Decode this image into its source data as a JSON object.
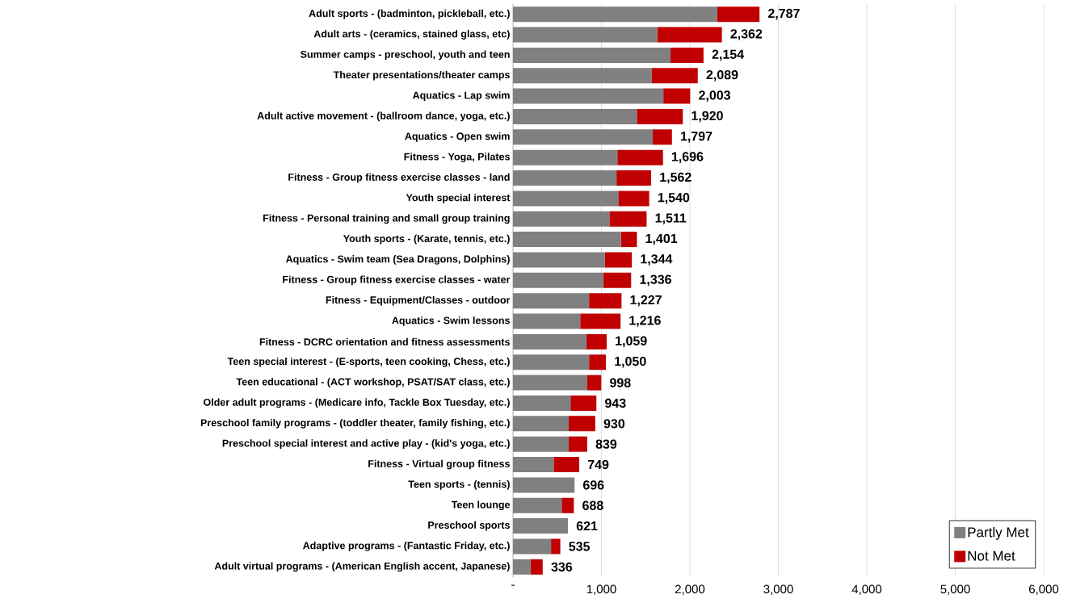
{
  "chart_data": {
    "type": "bar",
    "orientation": "horizontal",
    "stacked": true,
    "categories": [
      "Adult sports - (badminton, pickleball, etc.)",
      "Adult arts - (ceramics, stained glass, etc)",
      "Summer camps - preschool, youth and teen",
      "Theater presentations/theater camps",
      "Aquatics - Lap swim",
      "Adult active movement - (ballroom dance, yoga, etc.)",
      "Aquatics - Open swim",
      "Fitness - Yoga, Pilates",
      "Fitness - Group fitness exercise classes - land",
      "Youth special interest",
      "Fitness - Personal training and small group training",
      "Youth sports - (Karate, tennis, etc.)",
      "Aquatics - Swim team (Sea Dragons, Dolphins)",
      "Fitness - Group fitness exercise classes - water",
      "Fitness - Equipment/Classes - outdoor",
      "Aquatics - Swim lessons",
      "Fitness - DCRC orientation and fitness assessments",
      "Teen special interest - (E-sports, teen cooking, Chess, etc.)",
      "Teen educational - (ACT workshop, PSAT/SAT class, etc.)",
      "Older adult programs - (Medicare info, Tackle Box Tuesday, etc.)",
      "Preschool family programs - (toddler theater, family fishing, etc.)",
      "Preschool special interest and active play - (kid's yoga, etc.)",
      "Fitness - Virtual group fitness",
      "Teen sports - (tennis)",
      "Teen lounge",
      "Preschool sports",
      "Adaptive programs - (Fantastic Friday, etc.)",
      "Adult virtual programs - (American English accent, Japanese)"
    ],
    "series": [
      {
        "name": "Partly Met",
        "color": "#808080",
        "values": [
          2310,
          1630,
          1780,
          1570,
          1700,
          1400,
          1580,
          1180,
          1170,
          1190,
          1090,
          1220,
          1040,
          1020,
          860,
          760,
          830,
          860,
          840,
          650,
          630,
          630,
          460,
          696,
          550,
          621,
          430,
          200
        ]
      },
      {
        "name": "Not Met",
        "color": "#c00000",
        "values": [
          477,
          732,
          374,
          519,
          303,
          520,
          217,
          516,
          392,
          350,
          421,
          181,
          304,
          316,
          367,
          456,
          229,
          190,
          158,
          293,
          300,
          209,
          289,
          0,
          138,
          0,
          105,
          136
        ]
      }
    ],
    "totals": [
      "2,787",
      "2,362",
      "2,154",
      "2,089",
      "2,003",
      "1,920",
      "1,797",
      "1,696",
      "1,562",
      "1,540",
      "1,511",
      "1,401",
      "1,344",
      "1,336",
      "1,227",
      "1,216",
      "1,059",
      "1,050",
      "998",
      "943",
      "930",
      "839",
      "749",
      "696",
      "688",
      "621",
      "535",
      "336"
    ],
    "xlim": [
      0,
      6000
    ],
    "xticks": [
      {
        "value": 0,
        "label": "-"
      },
      {
        "value": 1000,
        "label": "1,000"
      },
      {
        "value": 2000,
        "label": "2,000"
      },
      {
        "value": 3000,
        "label": "3,000"
      },
      {
        "value": 4000,
        "label": "4,000"
      },
      {
        "value": 5000,
        "label": "5,000"
      },
      {
        "value": 6000,
        "label": "6,000"
      }
    ],
    "grid": "x",
    "legend": "bottom right"
  }
}
